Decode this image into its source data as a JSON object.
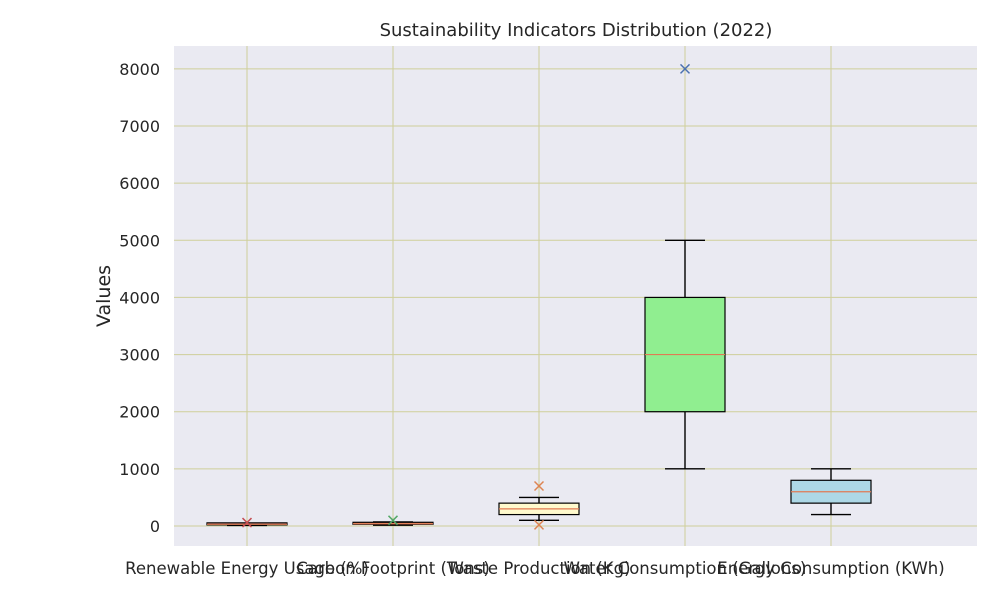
{
  "chart_data": {
    "type": "box",
    "title": "Sustainability Indicators Distribution (2022)",
    "xlabel": "",
    "ylabel": "Values",
    "ylim": [
      -350,
      8400
    ],
    "yticks": [
      0,
      1000,
      2000,
      3000,
      4000,
      5000,
      6000,
      7000,
      8000
    ],
    "grid": true,
    "categories": [
      "Renewable Energy Usage (%)",
      "Carbon Footprint (Tons)",
      "Waste Production (Kg)",
      "Water Consumption (Gallons)",
      "Energy Consumption (KWh)"
    ],
    "boxes": [
      {
        "whisker_low": 10,
        "q1": 20,
        "median": 30,
        "q3": 40,
        "whisker_high": 50,
        "outliers": [
          60
        ],
        "fill": "#ffb6c1",
        "outlier_color": "#c44e52"
      },
      {
        "whisker_low": 15,
        "q1": 30,
        "median": 40,
        "q3": 55,
        "whisker_high": 70,
        "outliers": [
          100
        ],
        "fill": "#ffa07a",
        "outlier_color": "#55a868"
      },
      {
        "whisker_low": 100,
        "q1": 200,
        "median": 300,
        "q3": 400,
        "whisker_high": 500,
        "outliers": [
          20,
          700
        ],
        "fill": "#fffacd",
        "outlier_color": "#dd8452"
      },
      {
        "whisker_low": 1000,
        "q1": 2000,
        "median": 3000,
        "q3": 4000,
        "whisker_high": 5000,
        "outliers": [
          8000
        ],
        "fill": "#90ee90",
        "outlier_color": "#4c72b0"
      },
      {
        "whisker_low": 200,
        "q1": 400,
        "median": 600,
        "q3": 800,
        "whisker_high": 1000,
        "outliers": [],
        "fill": "#add8e6",
        "outlier_color": "#8172b3"
      }
    ],
    "colors": {
      "plot_bg": "#eaeaf2",
      "grid": "#cfcf9a",
      "median": "#e07b54",
      "box_edge": "#000000"
    }
  }
}
